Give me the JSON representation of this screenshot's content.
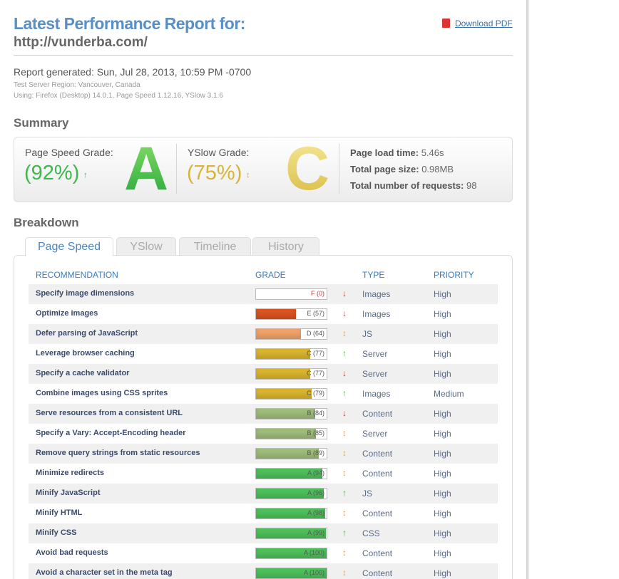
{
  "header": {
    "title": "Latest Performance Report for:",
    "url": "http://vunderba.com/",
    "download": "Download PDF"
  },
  "meta": {
    "generated": "Report generated: Sun, Jul 28, 2013, 10:59 PM -0700",
    "region": "Test Server Region: Vancouver, Canada",
    "using": "Using: Firefox (Desktop) 14.0.1, Page Speed 1.12.16, YSlow 3.1.6"
  },
  "summary": {
    "heading": "Summary",
    "pagespeed": {
      "label": "Page Speed Grade:",
      "score": "(92%)",
      "arrow": "↑",
      "letter": "A"
    },
    "yslow": {
      "label": "YSlow Grade:",
      "score": "(75%)",
      "arrow": "↕",
      "letter": "C"
    },
    "stats": [
      {
        "label": "Page load time:",
        "value": "5.46s"
      },
      {
        "label": "Total page size:",
        "value": "0.98MB"
      },
      {
        "label": "Total number of requests:",
        "value": "98"
      }
    ]
  },
  "breakdown": {
    "heading": "Breakdown",
    "tabs": [
      "Page Speed",
      "YSlow",
      "Timeline",
      "History"
    ],
    "active_tab": 0,
    "columns": [
      "RECOMMENDATION",
      "GRADE",
      "TYPE",
      "PRIORITY"
    ],
    "rows": [
      {
        "recommendation": "Specify image dimensions",
        "grade": "F (0)",
        "score": 0,
        "color": "#ffffff",
        "label_color": "#cc3333",
        "trend": "↓",
        "trend_color": "#cc3333",
        "type": "Images",
        "priority": "High"
      },
      {
        "recommendation": "Optimize images",
        "grade": "E (57)",
        "score": 57,
        "color": "#d9531e",
        "trend": "↓",
        "trend_color": "#cc3333",
        "type": "Images",
        "priority": "High"
      },
      {
        "recommendation": "Defer parsing of JavaScript",
        "grade": "D (64)",
        "score": 64,
        "color": "#f0a16a",
        "trend": "↕",
        "trend_color": "#e8a040",
        "type": "JS",
        "priority": "High"
      },
      {
        "recommendation": "Leverage browser caching",
        "grade": "C (77)",
        "score": 77,
        "color": "#d8b32e",
        "trend": "↑",
        "trend_color": "#55aa44",
        "type": "Server",
        "priority": "High"
      },
      {
        "recommendation": "Specify a cache validator",
        "grade": "C (77)",
        "score": 77,
        "color": "#d8b32e",
        "trend": "↓",
        "trend_color": "#cc3333",
        "type": "Server",
        "priority": "High"
      },
      {
        "recommendation": "Combine images using CSS sprites",
        "grade": "C (79)",
        "score": 79,
        "color": "#d8b32e",
        "trend": "↑",
        "trend_color": "#55aa44",
        "type": "Images",
        "priority": "Medium"
      },
      {
        "recommendation": "Serve resources from a consistent URL",
        "grade": "B (84)",
        "score": 84,
        "color": "#9dbb79",
        "trend": "↓",
        "trend_color": "#cc3333",
        "type": "Content",
        "priority": "High"
      },
      {
        "recommendation": "Specify a Vary: Accept-Encoding header",
        "grade": "B (85)",
        "score": 85,
        "color": "#9dbb79",
        "trend": "↕",
        "trend_color": "#e8a040",
        "type": "Server",
        "priority": "High"
      },
      {
        "recommendation": "Remove query strings from static resources",
        "grade": "B (89)",
        "score": 89,
        "color": "#9dbb79",
        "trend": "↕",
        "trend_color": "#e8a040",
        "type": "Content",
        "priority": "High"
      },
      {
        "recommendation": "Minimize redirects",
        "grade": "A (94)",
        "score": 94,
        "color": "#4cbf5a",
        "trend": "↕",
        "trend_color": "#e8a040",
        "type": "Content",
        "priority": "High"
      },
      {
        "recommendation": "Minify JavaScript",
        "grade": "A (96)",
        "score": 96,
        "color": "#4cbf5a",
        "trend": "↑",
        "trend_color": "#55aa44",
        "type": "JS",
        "priority": "High"
      },
      {
        "recommendation": "Minify HTML",
        "grade": "A (98)",
        "score": 98,
        "color": "#4cbf5a",
        "trend": "↕",
        "trend_color": "#e8a040",
        "type": "Content",
        "priority": "High"
      },
      {
        "recommendation": "Minify CSS",
        "grade": "A (99)",
        "score": 99,
        "color": "#4cbf5a",
        "trend": "↑",
        "trend_color": "#55aa44",
        "type": "CSS",
        "priority": "High"
      },
      {
        "recommendation": "Avoid bad requests",
        "grade": "A (100)",
        "score": 100,
        "color": "#4cbf5a",
        "trend": "↕",
        "trend_color": "#e8a040",
        "type": "Content",
        "priority": "High"
      },
      {
        "recommendation": "Avoid a character set in the meta tag",
        "grade": "A (100)",
        "score": 100,
        "color": "#4cbf5a",
        "trend": "↕",
        "trend_color": "#e8a040",
        "type": "Content",
        "priority": "High"
      }
    ]
  }
}
